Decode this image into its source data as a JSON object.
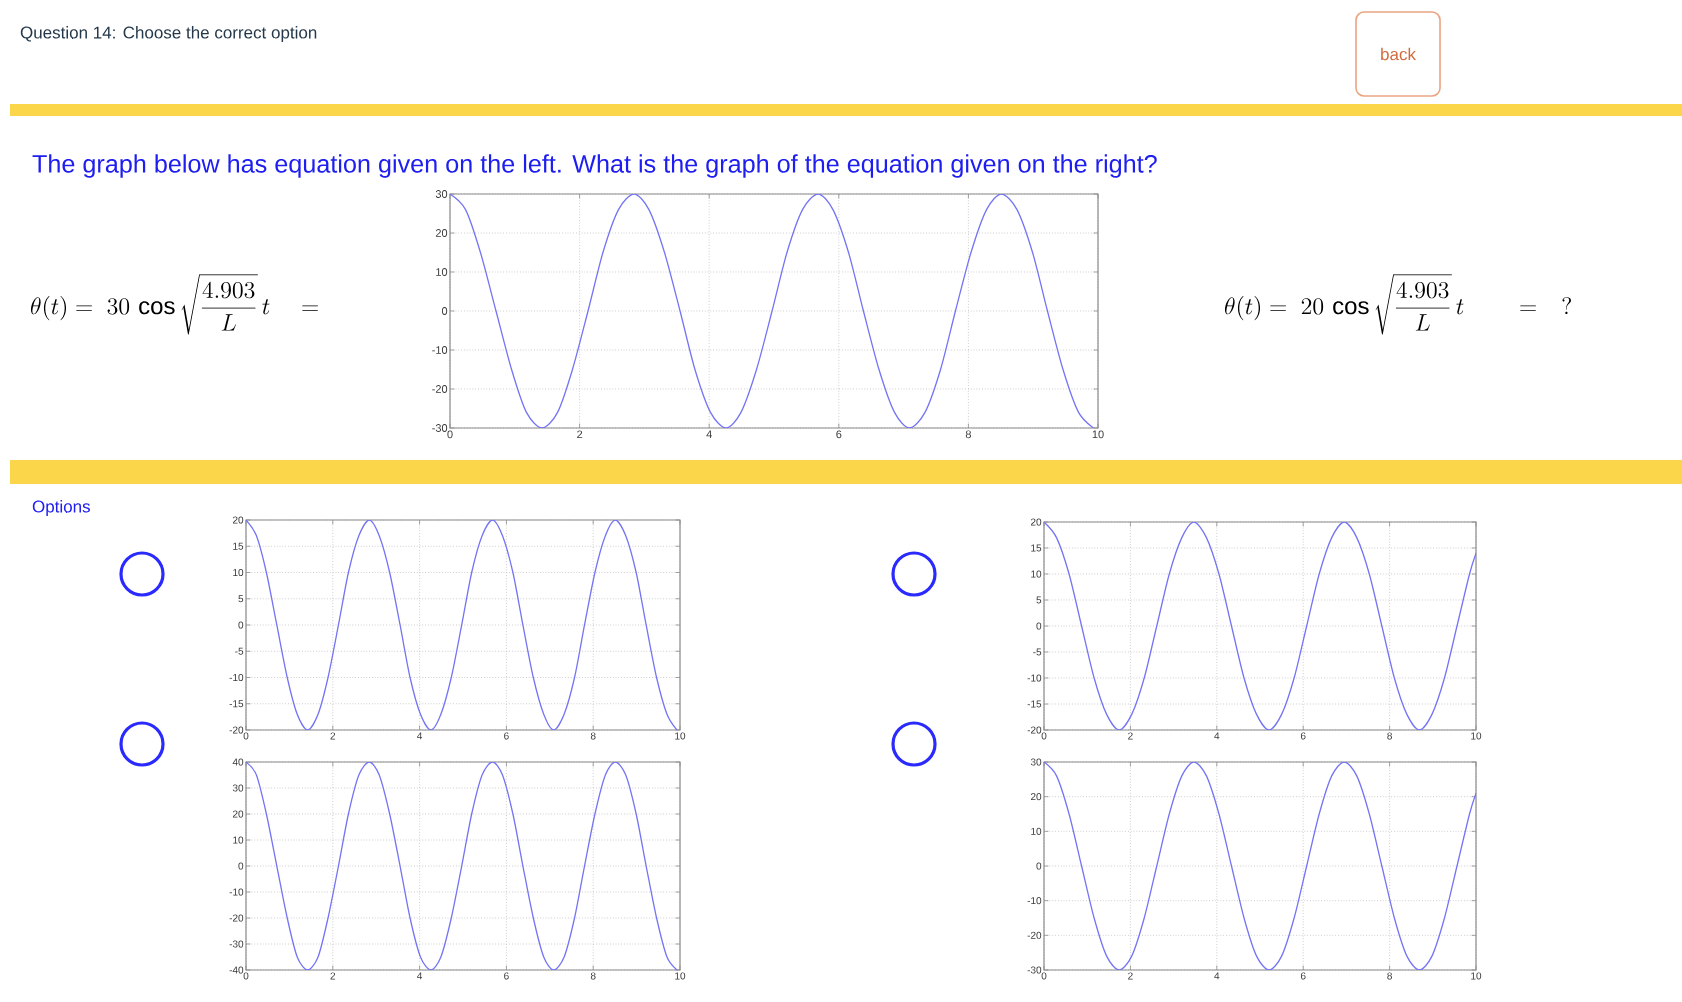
{
  "chart_data": [
    {
      "type": "line",
      "subtitle": "The graph below has equation given on the left. What is the graph of the equation given on the right?",
      "annotations": [
        "Question 14: Choose the correct option",
        "back",
        "\\theta(t) = \\;30\\,\\cos\\sqrt{\\frac{4.903}{L}}\\,t\\quad=",
        "\\theta(t) = \\;20\\,\\cos\\sqrt{\\frac{4.903}{L}}\\,t\\qquad=\\quad ?"
      ],
      "x": [
        0,
        0.24,
        0.47,
        0.71,
        0.95,
        1.18,
        1.42,
        1.66,
        1.89,
        2.13,
        2.36,
        2.6,
        2.84,
        3.07,
        3.31,
        3.55,
        3.78,
        4.02,
        4.26,
        4.49,
        4.73,
        4.97,
        5.2,
        5.44,
        5.68,
        5.91,
        6.15,
        6.38,
        6.62,
        6.86,
        7.09,
        7.33,
        7.57,
        7.8,
        8.04,
        8.28,
        8.51,
        8.75,
        8.99,
        9.22,
        9.46,
        9.7,
        9.93,
        10
      ],
      "values": [
        30,
        26,
        15,
        0,
        -15,
        -26,
        -30,
        -26,
        -15,
        0,
        15,
        26,
        30,
        26,
        15,
        0,
        -15,
        -26,
        -30,
        -26,
        -15,
        0,
        15,
        26,
        30,
        26,
        15,
        0,
        -15,
        -26,
        -30,
        -26,
        -15,
        0,
        15,
        26,
        30,
        26,
        15,
        0,
        -15,
        -26,
        -30,
        -30
      ],
      "color": "#7474f4",
      "xlim": [
        0,
        10
      ],
      "ylim": [
        -30,
        30
      ],
      "xticks": [
        0,
        2,
        4,
        6,
        8,
        10
      ],
      "yticks": [
        -30,
        -20,
        -10,
        0,
        10,
        20,
        30
      ],
      "grid": true
    },
    {
      "type": "line",
      "annotations": [
        "Options"
      ],
      "x": [
        0,
        0.24,
        0.47,
        0.71,
        0.95,
        1.18,
        1.42,
        1.66,
        1.89,
        2.13,
        2.36,
        2.6,
        2.84,
        3.07,
        3.31,
        3.55,
        3.78,
        4.02,
        4.26,
        4.49,
        4.73,
        4.97,
        5.2,
        5.44,
        5.68,
        5.91,
        6.15,
        6.38,
        6.62,
        6.86,
        7.09,
        7.33,
        7.57,
        7.8,
        8.04,
        8.28,
        8.51,
        8.75,
        8.99,
        9.22,
        9.46,
        9.7,
        9.93,
        10
      ],
      "values": [
        20,
        17,
        10,
        0,
        -10,
        -17,
        -20,
        -17,
        -10,
        0,
        10,
        17,
        20,
        17,
        10,
        0,
        -10,
        -17,
        -20,
        -17,
        -10,
        0,
        10,
        17,
        20,
        17,
        10,
        0,
        -10,
        -17,
        -20,
        -17,
        -10,
        0,
        10,
        17,
        20,
        17,
        10,
        0,
        -10,
        -17,
        -20,
        -20
      ],
      "color": "#7474f4",
      "xlim": [
        0,
        10
      ],
      "ylim": [
        -20,
        20
      ],
      "xticks": [
        0,
        2,
        4,
        6,
        8,
        10
      ],
      "yticks": [
        -20,
        -15,
        -10,
        -5,
        0,
        5,
        10,
        15,
        20
      ],
      "grid": true
    },
    {
      "type": "line",
      "x": [
        0,
        0.29,
        0.58,
        0.87,
        1.16,
        1.45,
        1.74,
        2.03,
        2.32,
        2.61,
        2.9,
        3.19,
        3.47,
        3.76,
        4.05,
        4.34,
        4.63,
        4.92,
        5.21,
        5.5,
        5.79,
        6.08,
        6.37,
        6.66,
        6.95,
        7.24,
        7.53,
        7.82,
        8.11,
        8.4,
        8.69,
        8.98,
        9.27,
        9.56,
        9.85,
        10
      ],
      "values": [
        20,
        17,
        10,
        0,
        -10,
        -17,
        -20,
        -17,
        -10,
        0,
        10,
        17,
        20,
        17,
        10,
        0,
        -10,
        -17,
        -20,
        -17,
        -10,
        0,
        10,
        17,
        20,
        17,
        10,
        0,
        -10,
        -17,
        -20,
        -17,
        -10,
        0,
        10,
        14
      ],
      "color": "#7474f4",
      "xlim": [
        0,
        10
      ],
      "ylim": [
        -20,
        20
      ],
      "xticks": [
        0,
        2,
        4,
        6,
        8,
        10
      ],
      "yticks": [
        -20,
        -15,
        -10,
        -5,
        0,
        5,
        10,
        15,
        20
      ],
      "grid": true
    },
    {
      "type": "line",
      "x": [
        0,
        0.24,
        0.47,
        0.71,
        0.95,
        1.18,
        1.42,
        1.66,
        1.89,
        2.13,
        2.36,
        2.6,
        2.84,
        3.07,
        3.31,
        3.55,
        3.78,
        4.02,
        4.26,
        4.49,
        4.73,
        4.97,
        5.2,
        5.44,
        5.68,
        5.91,
        6.15,
        6.38,
        6.62,
        6.86,
        7.09,
        7.33,
        7.57,
        7.8,
        8.04,
        8.28,
        8.51,
        8.75,
        8.99,
        9.22,
        9.46,
        9.7,
        9.93,
        10
      ],
      "values": [
        40,
        35,
        20,
        0,
        -20,
        -35,
        -40,
        -35,
        -20,
        0,
        20,
        35,
        40,
        35,
        20,
        0,
        -20,
        -35,
        -40,
        -35,
        -20,
        0,
        20,
        35,
        40,
        35,
        20,
        0,
        -20,
        -35,
        -40,
        -35,
        -20,
        0,
        20,
        35,
        40,
        35,
        20,
        0,
        -20,
        -35,
        -40,
        -40
      ],
      "color": "#7474f4",
      "xlim": [
        0,
        10
      ],
      "ylim": [
        -40,
        40
      ],
      "xticks": [
        0,
        2,
        4,
        6,
        8,
        10
      ],
      "yticks": [
        -40,
        -30,
        -20,
        -10,
        0,
        10,
        20,
        30,
        40
      ],
      "grid": true
    },
    {
      "type": "line",
      "x": [
        0,
        0.29,
        0.58,
        0.87,
        1.16,
        1.45,
        1.74,
        2.03,
        2.32,
        2.61,
        2.9,
        3.19,
        3.47,
        3.76,
        4.05,
        4.34,
        4.63,
        4.92,
        5.21,
        5.5,
        5.79,
        6.08,
        6.37,
        6.66,
        6.95,
        7.24,
        7.53,
        7.82,
        8.11,
        8.4,
        8.69,
        8.98,
        9.27,
        9.56,
        9.85,
        10
      ],
      "values": [
        30,
        26,
        15,
        0,
        -15,
        -26,
        -30,
        -26,
        -15,
        0,
        15,
        26,
        30,
        26,
        15,
        0,
        -15,
        -26,
        -30,
        -26,
        -15,
        0,
        15,
        26,
        30,
        26,
        15,
        0,
        -15,
        -26,
        -30,
        -26,
        -15,
        0,
        15,
        21
      ],
      "color": "#7474f4",
      "xlim": [
        0,
        10
      ],
      "ylim": [
        -30,
        30
      ],
      "xticks": [
        0,
        2,
        4,
        6,
        8,
        10
      ],
      "yticks": [
        -30,
        -20,
        -10,
        0,
        10,
        20,
        30
      ],
      "grid": true
    }
  ]
}
